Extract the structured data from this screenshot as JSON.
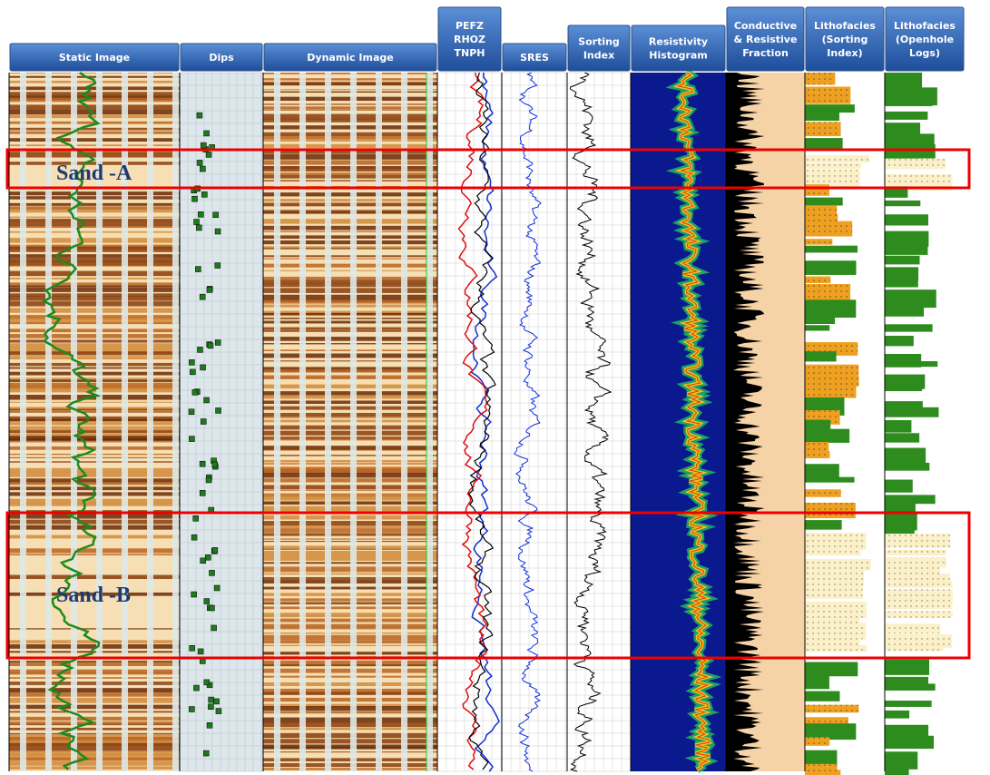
{
  "tracks": [
    {
      "lines": [
        "Static Image"
      ]
    },
    {
      "lines": [
        "Dips"
      ]
    },
    {
      "lines": [
        "Dynamic Image"
      ]
    },
    {
      "lines": [
        "PEFZ",
        "RHOZ",
        "TNPH"
      ]
    },
    {
      "lines": [
        "SRES"
      ]
    },
    {
      "lines": [
        "Sorting",
        "Index"
      ]
    },
    {
      "lines": [
        "Resistivity",
        "Histogram"
      ]
    },
    {
      "lines": [
        "Conductive",
        "& Resistive",
        "Fraction"
      ]
    },
    {
      "lines": [
        "Lithofacies",
        "(Sorting",
        "Index)"
      ]
    },
    {
      "lines": [
        "Lithofacies",
        "(Openhole",
        "Logs)"
      ]
    }
  ],
  "zones": [
    {
      "label": "Sand -A"
    },
    {
      "label": "Sand -B"
    }
  ]
}
